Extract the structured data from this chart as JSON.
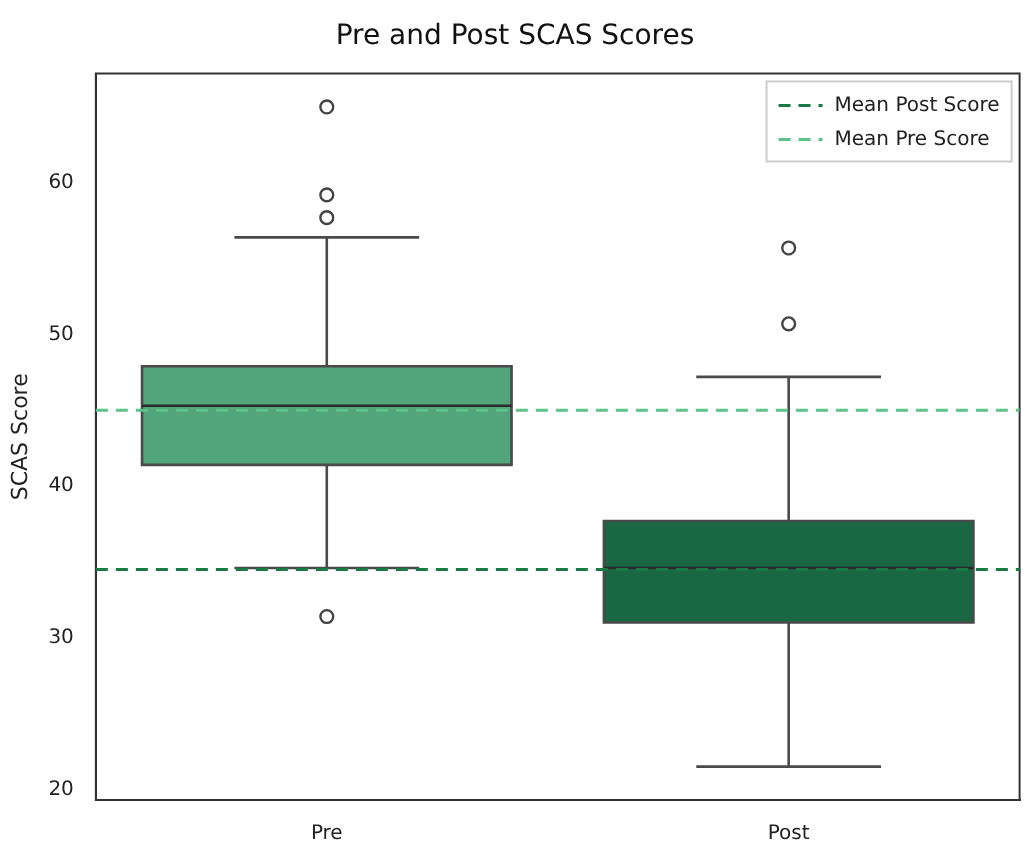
{
  "chart_data": {
    "type": "box",
    "title": "Pre and Post SCAS Scores",
    "ylabel": "SCAS Score",
    "categories": [
      "Pre",
      "Post"
    ],
    "series": [
      {
        "colors": [
          "#52a57a",
          "#1a6843"
        ],
        "boxes": [
          {
            "low": 34.6,
            "q1": 41.4,
            "median": 45.3,
            "q3": 47.9,
            "high": 56.4,
            "outliers": [
              65.0,
              59.2,
              57.7,
              31.4
            ]
          },
          {
            "low": 21.5,
            "q1": 31.0,
            "median": 34.6,
            "q3": 37.7,
            "high": 47.2,
            "outliers": [
              55.7,
              50.7
            ]
          }
        ]
      }
    ],
    "ylim": [
      19.3,
      67.2
    ],
    "yticks": [
      20,
      30,
      40,
      50,
      60
    ],
    "grid": false,
    "legend": "top right",
    "ref_lines": [
      {
        "axis": "y",
        "value": 34.5,
        "label": "Mean Post Score",
        "color": "#1a7a45",
        "line_style": "dashed"
      },
      {
        "axis": "y",
        "value": 45.0,
        "label": "Mean Pre Score",
        "color": "#5cc48a",
        "line_style": "dashed"
      }
    ]
  }
}
